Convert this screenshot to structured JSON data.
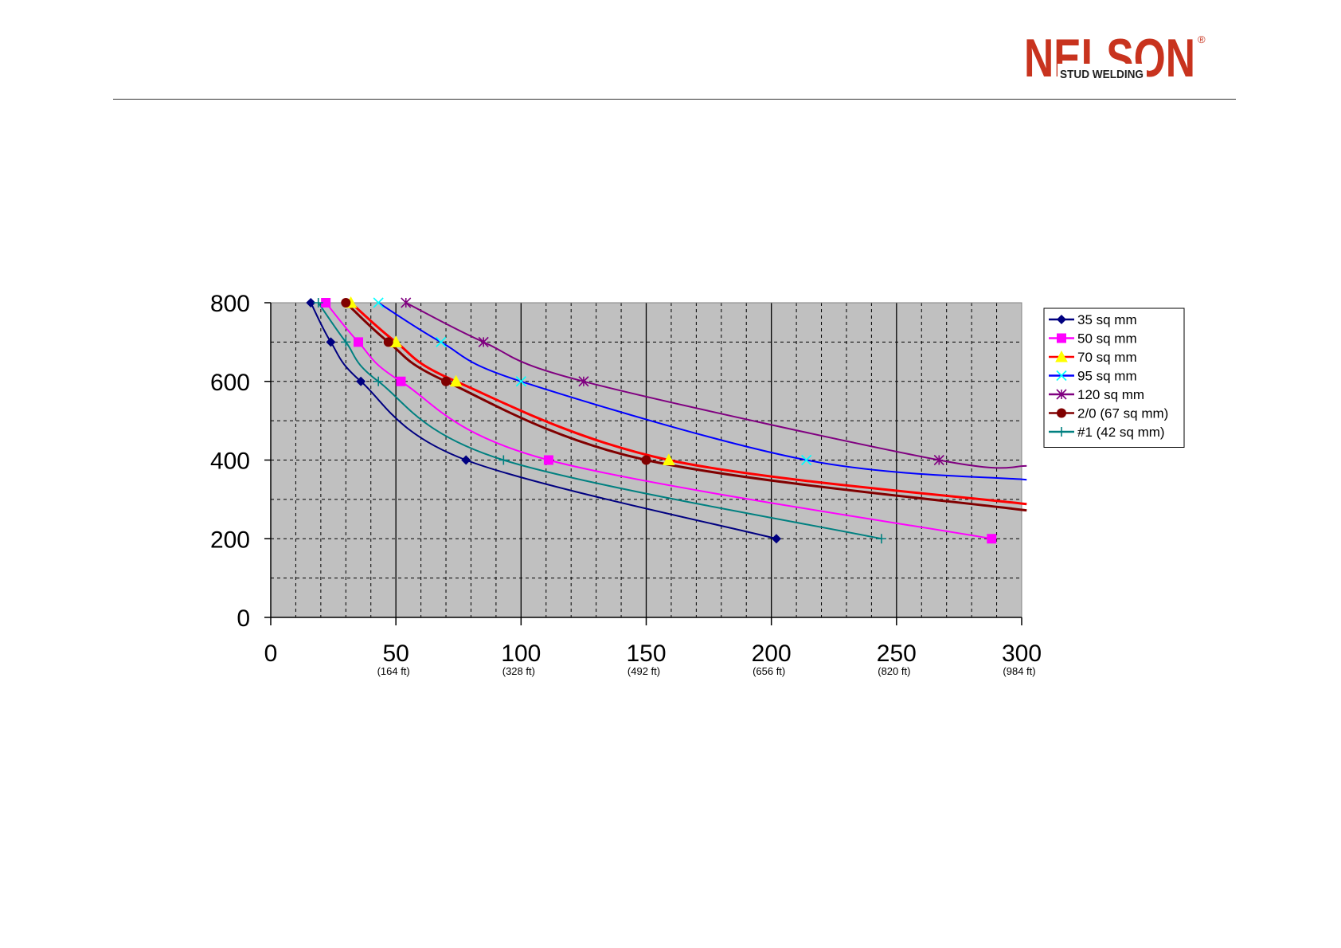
{
  "logo": {
    "brand": "NELSON",
    "tagline": "STUD WELDING",
    "registered_mark": "®",
    "brand_color": "#c8331e"
  },
  "chart_data": {
    "type": "line",
    "title": "",
    "xlabel": "",
    "ylabel": "",
    "xlim": [
      0,
      300
    ],
    "ylim": [
      0,
      800
    ],
    "x_ticks": [
      0,
      50,
      100,
      150,
      200,
      250,
      300
    ],
    "x_tick_labels": [
      "0",
      "50",
      "100",
      "150",
      "200",
      "250",
      "300"
    ],
    "x_sub_labels": [
      "",
      "(164 ft)",
      "(328 ft)",
      "(492 ft)",
      "(656 ft)",
      "(820 ft)",
      "(984 ft)"
    ],
    "y_ticks": [
      0,
      200,
      400,
      600,
      800
    ],
    "y_tick_labels": [
      "0",
      "200",
      "400",
      "600",
      "800"
    ],
    "grid": true,
    "plot_background": "#c0c0c0",
    "legend_position": "right",
    "series": [
      {
        "name": "35 sq mm",
        "color": "#000080",
        "marker": "diamond",
        "points": [
          [
            16,
            800
          ],
          [
            24,
            700
          ],
          [
            36,
            600
          ],
          [
            78,
            400
          ],
          [
            202,
            200
          ]
        ]
      },
      {
        "name": "50 sq mm",
        "color": "#ff00ff",
        "marker": "square",
        "points": [
          [
            22,
            800
          ],
          [
            35,
            700
          ],
          [
            52,
            600
          ],
          [
            111,
            400
          ],
          [
            288,
            200
          ]
        ]
      },
      {
        "name": "70 sq mm",
        "color": "#ff0000",
        "marker": "triangle",
        "points": [
          [
            32,
            800
          ],
          [
            50,
            700
          ],
          [
            74,
            600
          ],
          [
            159,
            400
          ],
          [
            302,
            288
          ]
        ]
      },
      {
        "name": "95 sq mm",
        "color": "#0000ff",
        "marker": "x",
        "points": [
          [
            43,
            800
          ],
          [
            68,
            700
          ],
          [
            100,
            600
          ],
          [
            214,
            400
          ],
          [
            302,
            350
          ]
        ]
      },
      {
        "name": "120 sq mm",
        "color": "#800080",
        "marker": "star",
        "points": [
          [
            54,
            800
          ],
          [
            85,
            700
          ],
          [
            125,
            600
          ],
          [
            267,
            400
          ],
          [
            302,
            385
          ]
        ]
      },
      {
        "name": "2/0 (67 sq mm)",
        "color": "#800000",
        "marker": "circle",
        "points": [
          [
            30,
            800
          ],
          [
            47,
            700
          ],
          [
            70,
            600
          ],
          [
            150,
            400
          ],
          [
            302,
            272
          ]
        ]
      },
      {
        "name": "#1 (42 sq mm)",
        "color": "#008080",
        "marker": "plus",
        "points": [
          [
            19,
            800
          ],
          [
            30,
            700
          ],
          [
            43,
            600
          ],
          [
            93,
            400
          ],
          [
            244,
            200
          ]
        ]
      }
    ]
  }
}
